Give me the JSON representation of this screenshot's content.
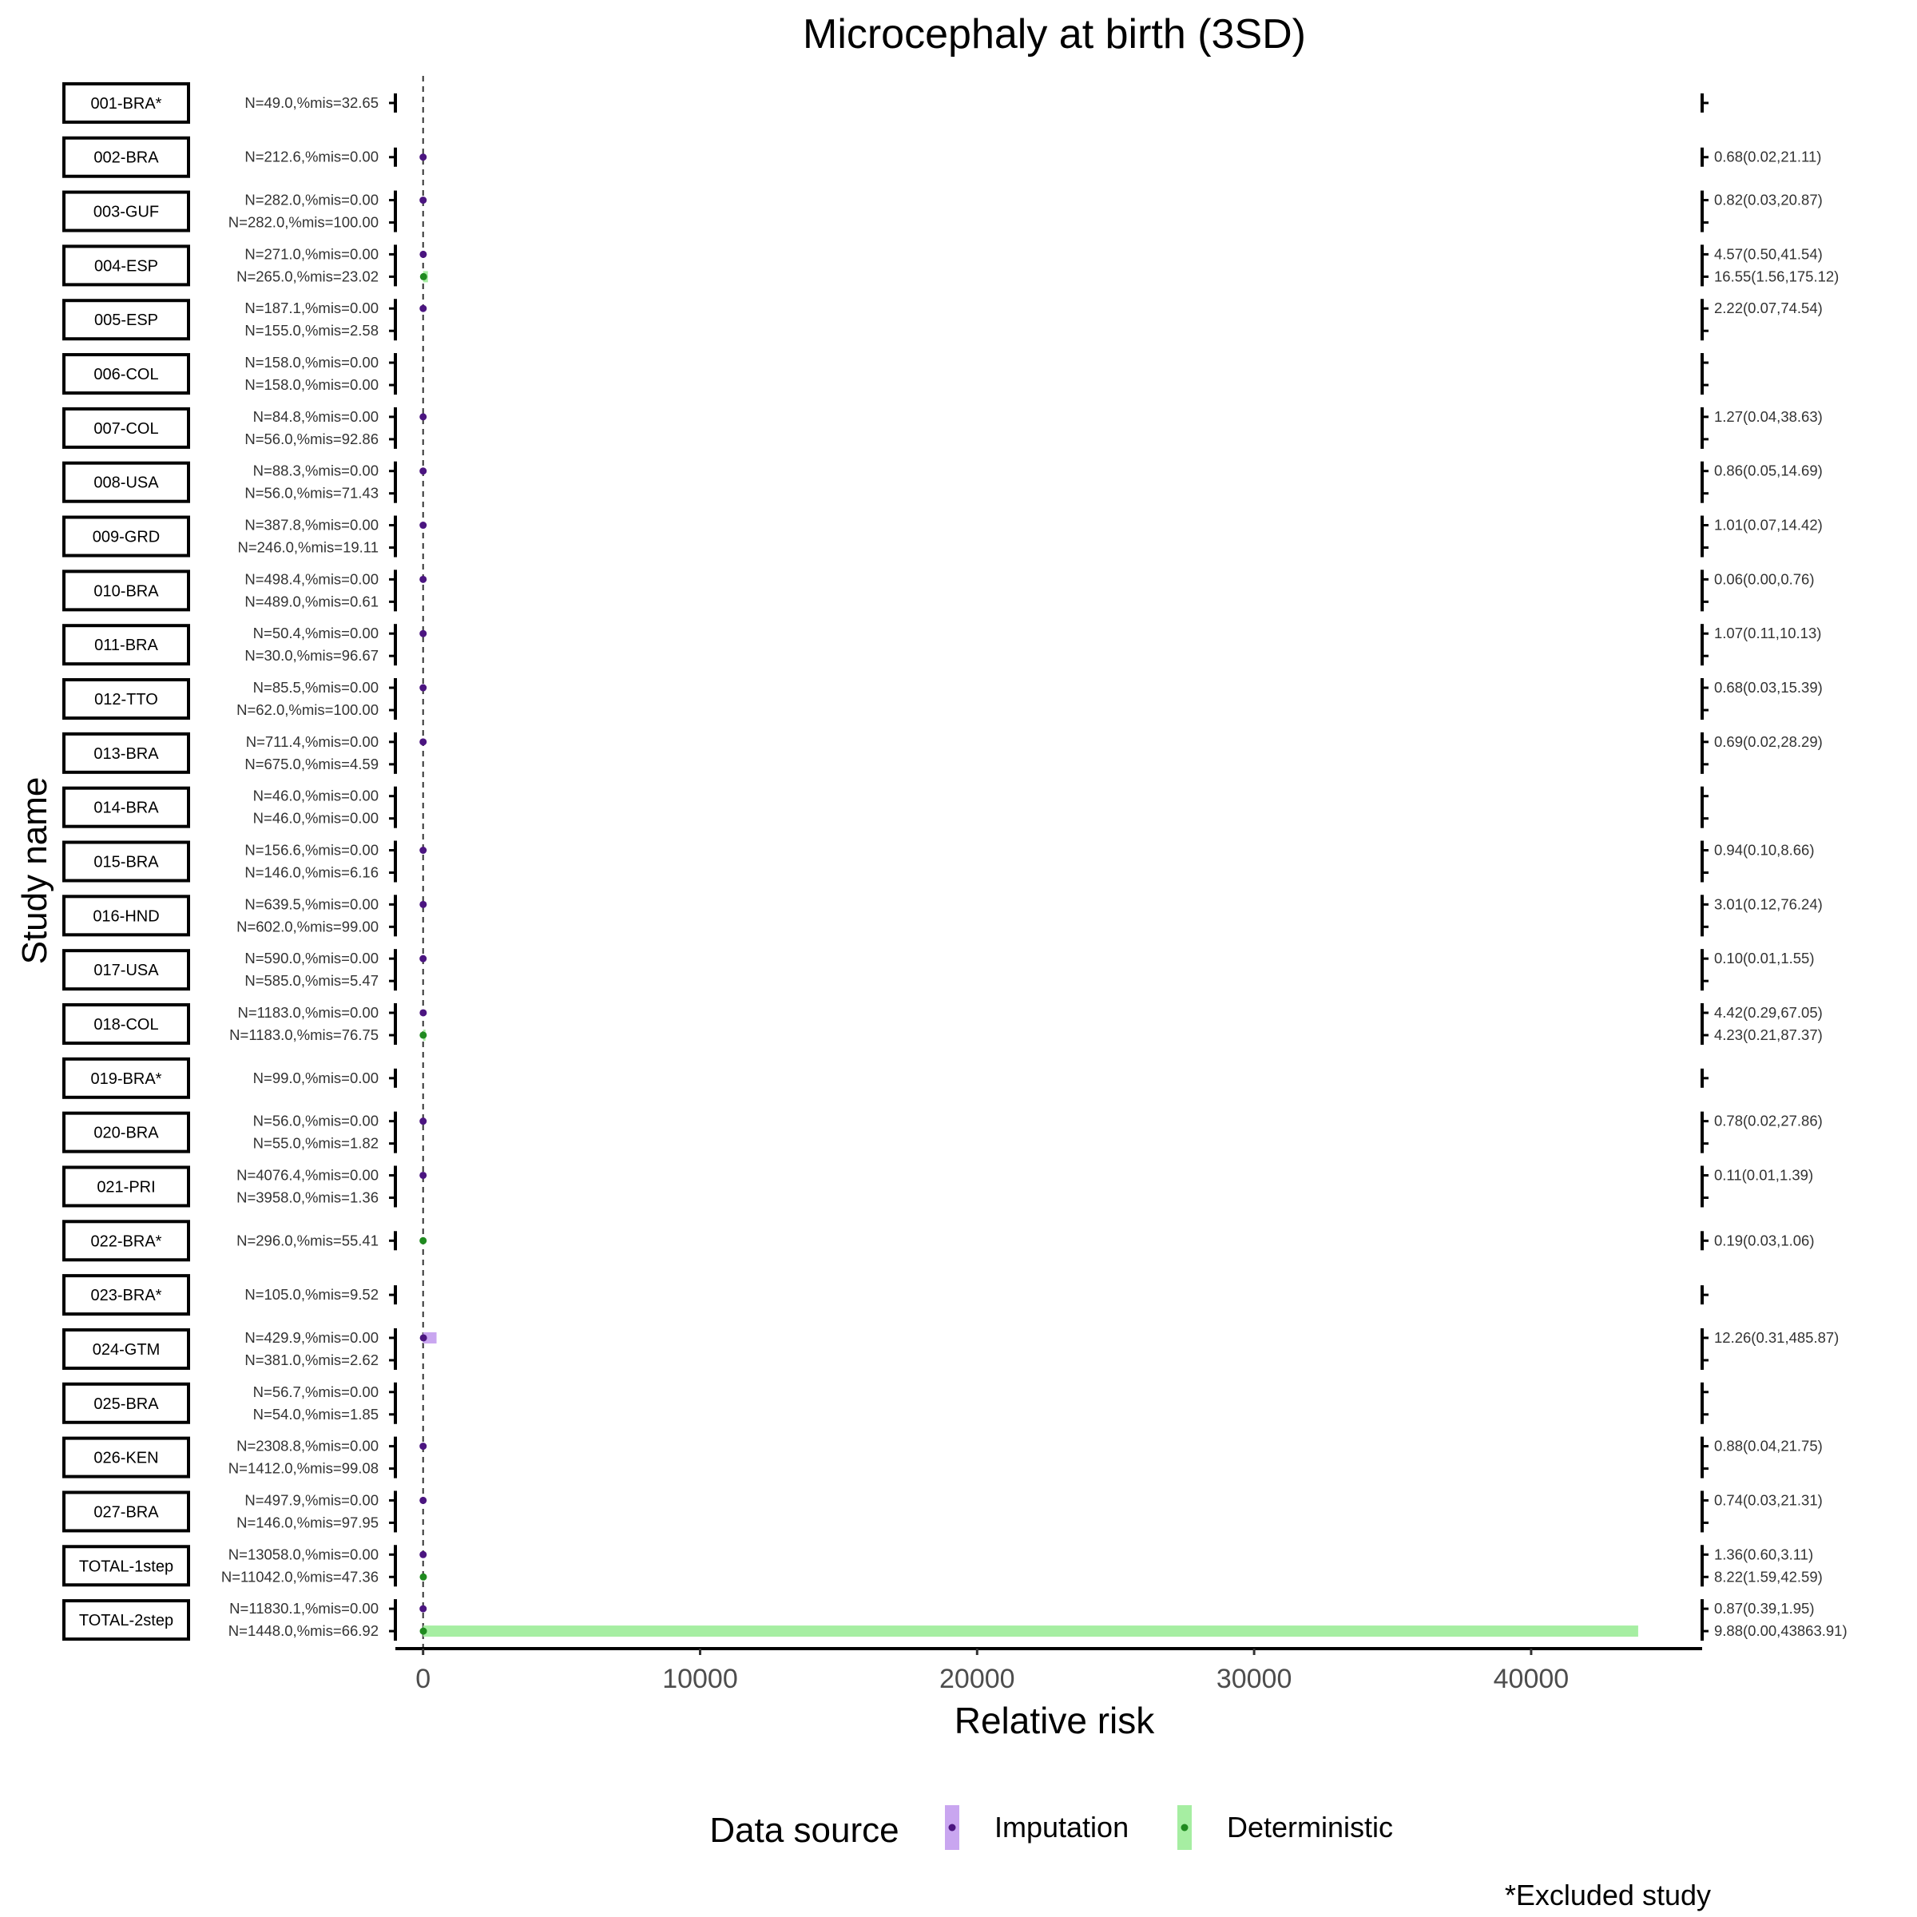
{
  "chart_data": {
    "type": "forest",
    "title": "Microcephaly at birth (3SD)",
    "xlabel": "Relative risk",
    "ylabel": "Study name",
    "xlim": [
      -1000,
      46000
    ],
    "x_ticks": [
      0,
      10000,
      20000,
      30000,
      40000
    ],
    "x_tick_labels": [
      "0",
      "10000",
      "20000",
      "30000",
      "40000"
    ],
    "reference_line": 1,
    "legend": {
      "title": "Data source",
      "entries": [
        {
          "name": "Imputation",
          "fill": "#c9a6f0",
          "point": "#4b1580"
        },
        {
          "name": "Deterministic",
          "fill": "#a6eea2",
          "point": "#1f8a1f"
        }
      ],
      "position": "bottom"
    },
    "footnote": "*Excluded study",
    "studies": [
      {
        "name": "001-BRA*",
        "rows": [
          {
            "label": "N=49.0,%mis=32.65",
            "source": null,
            "rr": null,
            "lo": null,
            "hi": null,
            "ci": ""
          }
        ]
      },
      {
        "name": "002-BRA",
        "rows": [
          {
            "label": "N=212.6,%mis=0.00",
            "source": "Imputation",
            "rr": 0.68,
            "lo": 0.02,
            "hi": 21.11,
            "ci": "0.68(0.02,21.11)"
          }
        ]
      },
      {
        "name": "003-GUF",
        "rows": [
          {
            "label": "N=282.0,%mis=0.00",
            "source": "Imputation",
            "rr": 0.82,
            "lo": 0.03,
            "hi": 20.87,
            "ci": "0.82(0.03,20.87)"
          },
          {
            "label": "N=282.0,%mis=100.00",
            "source": null,
            "rr": null,
            "lo": null,
            "hi": null,
            "ci": ""
          }
        ]
      },
      {
        "name": "004-ESP",
        "rows": [
          {
            "label": "N=271.0,%mis=0.00",
            "source": "Imputation",
            "rr": 4.57,
            "lo": 0.5,
            "hi": 41.54,
            "ci": "4.57(0.50,41.54)"
          },
          {
            "label": "N=265.0,%mis=23.02",
            "source": "Deterministic",
            "rr": 16.55,
            "lo": 1.56,
            "hi": 175.12,
            "ci": "16.55(1.56,175.12)"
          }
        ]
      },
      {
        "name": "005-ESP",
        "rows": [
          {
            "label": "N=187.1,%mis=0.00",
            "source": "Imputation",
            "rr": 2.22,
            "lo": 0.07,
            "hi": 74.54,
            "ci": "2.22(0.07,74.54)"
          },
          {
            "label": "N=155.0,%mis=2.58",
            "source": null,
            "rr": null,
            "lo": null,
            "hi": null,
            "ci": ""
          }
        ]
      },
      {
        "name": "006-COL",
        "rows": [
          {
            "label": "N=158.0,%mis=0.00",
            "source": null,
            "rr": null,
            "lo": null,
            "hi": null,
            "ci": ""
          },
          {
            "label": "N=158.0,%mis=0.00",
            "source": null,
            "rr": null,
            "lo": null,
            "hi": null,
            "ci": ""
          }
        ]
      },
      {
        "name": "007-COL",
        "rows": [
          {
            "label": "N=84.8,%mis=0.00",
            "source": "Imputation",
            "rr": 1.27,
            "lo": 0.04,
            "hi": 38.63,
            "ci": "1.27(0.04,38.63)"
          },
          {
            "label": "N=56.0,%mis=92.86",
            "source": null,
            "rr": null,
            "lo": null,
            "hi": null,
            "ci": ""
          }
        ]
      },
      {
        "name": "008-USA",
        "rows": [
          {
            "label": "N=88.3,%mis=0.00",
            "source": "Imputation",
            "rr": 0.86,
            "lo": 0.05,
            "hi": 14.69,
            "ci": "0.86(0.05,14.69)"
          },
          {
            "label": "N=56.0,%mis=71.43",
            "source": null,
            "rr": null,
            "lo": null,
            "hi": null,
            "ci": ""
          }
        ]
      },
      {
        "name": "009-GRD",
        "rows": [
          {
            "label": "N=387.8,%mis=0.00",
            "source": "Imputation",
            "rr": 1.01,
            "lo": 0.07,
            "hi": 14.42,
            "ci": "1.01(0.07,14.42)"
          },
          {
            "label": "N=246.0,%mis=19.11",
            "source": null,
            "rr": null,
            "lo": null,
            "hi": null,
            "ci": ""
          }
        ]
      },
      {
        "name": "010-BRA",
        "rows": [
          {
            "label": "N=498.4,%mis=0.00",
            "source": "Imputation",
            "rr": 0.06,
            "lo": 0.0,
            "hi": 0.76,
            "ci": "0.06(0.00,0.76)"
          },
          {
            "label": "N=489.0,%mis=0.61",
            "source": null,
            "rr": null,
            "lo": null,
            "hi": null,
            "ci": ""
          }
        ]
      },
      {
        "name": "011-BRA",
        "rows": [
          {
            "label": "N=50.4,%mis=0.00",
            "source": "Imputation",
            "rr": 1.07,
            "lo": 0.11,
            "hi": 10.13,
            "ci": "1.07(0.11,10.13)"
          },
          {
            "label": "N=30.0,%mis=96.67",
            "source": null,
            "rr": null,
            "lo": null,
            "hi": null,
            "ci": ""
          }
        ]
      },
      {
        "name": "012-TTO",
        "rows": [
          {
            "label": "N=85.5,%mis=0.00",
            "source": "Imputation",
            "rr": 0.68,
            "lo": 0.03,
            "hi": 15.39,
            "ci": "0.68(0.03,15.39)"
          },
          {
            "label": "N=62.0,%mis=100.00",
            "source": null,
            "rr": null,
            "lo": null,
            "hi": null,
            "ci": ""
          }
        ]
      },
      {
        "name": "013-BRA",
        "rows": [
          {
            "label": "N=711.4,%mis=0.00",
            "source": "Imputation",
            "rr": 0.69,
            "lo": 0.02,
            "hi": 28.29,
            "ci": "0.69(0.02,28.29)"
          },
          {
            "label": "N=675.0,%mis=4.59",
            "source": null,
            "rr": null,
            "lo": null,
            "hi": null,
            "ci": ""
          }
        ]
      },
      {
        "name": "014-BRA",
        "rows": [
          {
            "label": "N=46.0,%mis=0.00",
            "source": null,
            "rr": null,
            "lo": null,
            "hi": null,
            "ci": ""
          },
          {
            "label": "N=46.0,%mis=0.00",
            "source": null,
            "rr": null,
            "lo": null,
            "hi": null,
            "ci": ""
          }
        ]
      },
      {
        "name": "015-BRA",
        "rows": [
          {
            "label": "N=156.6,%mis=0.00",
            "source": "Imputation",
            "rr": 0.94,
            "lo": 0.1,
            "hi": 8.66,
            "ci": "0.94(0.10,8.66)"
          },
          {
            "label": "N=146.0,%mis=6.16",
            "source": null,
            "rr": null,
            "lo": null,
            "hi": null,
            "ci": ""
          }
        ]
      },
      {
        "name": "016-HND",
        "rows": [
          {
            "label": "N=639.5,%mis=0.00",
            "source": "Imputation",
            "rr": 3.01,
            "lo": 0.12,
            "hi": 76.24,
            "ci": "3.01(0.12,76.24)"
          },
          {
            "label": "N=602.0,%mis=99.00",
            "source": null,
            "rr": null,
            "lo": null,
            "hi": null,
            "ci": ""
          }
        ]
      },
      {
        "name": "017-USA",
        "rows": [
          {
            "label": "N=590.0,%mis=0.00",
            "source": "Imputation",
            "rr": 0.1,
            "lo": 0.01,
            "hi": 1.55,
            "ci": "0.10(0.01,1.55)"
          },
          {
            "label": "N=585.0,%mis=5.47",
            "source": null,
            "rr": null,
            "lo": null,
            "hi": null,
            "ci": ""
          }
        ]
      },
      {
        "name": "018-COL",
        "rows": [
          {
            "label": "N=1183.0,%mis=0.00",
            "source": "Imputation",
            "rr": 4.42,
            "lo": 0.29,
            "hi": 67.05,
            "ci": "4.42(0.29,67.05)"
          },
          {
            "label": "N=1183.0,%mis=76.75",
            "source": "Deterministic",
            "rr": 4.23,
            "lo": 0.21,
            "hi": 87.37,
            "ci": "4.23(0.21,87.37)"
          }
        ]
      },
      {
        "name": "019-BRA*",
        "rows": [
          {
            "label": "N=99.0,%mis=0.00",
            "source": null,
            "rr": null,
            "lo": null,
            "hi": null,
            "ci": ""
          }
        ]
      },
      {
        "name": "020-BRA",
        "rows": [
          {
            "label": "N=56.0,%mis=0.00",
            "source": "Imputation",
            "rr": 0.78,
            "lo": 0.02,
            "hi": 27.86,
            "ci": "0.78(0.02,27.86)"
          },
          {
            "label": "N=55.0,%mis=1.82",
            "source": null,
            "rr": null,
            "lo": null,
            "hi": null,
            "ci": ""
          }
        ]
      },
      {
        "name": "021-PRI",
        "rows": [
          {
            "label": "N=4076.4,%mis=0.00",
            "source": "Imputation",
            "rr": 0.11,
            "lo": 0.01,
            "hi": 1.39,
            "ci": "0.11(0.01,1.39)"
          },
          {
            "label": "N=3958.0,%mis=1.36",
            "source": null,
            "rr": null,
            "lo": null,
            "hi": null,
            "ci": ""
          }
        ]
      },
      {
        "name": "022-BRA*",
        "rows": [
          {
            "label": "N=296.0,%mis=55.41",
            "source": "Deterministic",
            "rr": 0.19,
            "lo": 0.03,
            "hi": 1.06,
            "ci": "0.19(0.03,1.06)"
          }
        ]
      },
      {
        "name": "023-BRA*",
        "rows": [
          {
            "label": "N=105.0,%mis=9.52",
            "source": null,
            "rr": null,
            "lo": null,
            "hi": null,
            "ci": ""
          }
        ]
      },
      {
        "name": "024-GTM",
        "rows": [
          {
            "label": "N=429.9,%mis=0.00",
            "source": "Imputation",
            "rr": 12.26,
            "lo": 0.31,
            "hi": 485.87,
            "ci": "12.26(0.31,485.87)"
          },
          {
            "label": "N=381.0,%mis=2.62",
            "source": null,
            "rr": null,
            "lo": null,
            "hi": null,
            "ci": ""
          }
        ]
      },
      {
        "name": "025-BRA",
        "rows": [
          {
            "label": "N=56.7,%mis=0.00",
            "source": null,
            "rr": null,
            "lo": null,
            "hi": null,
            "ci": ""
          },
          {
            "label": "N=54.0,%mis=1.85",
            "source": null,
            "rr": null,
            "lo": null,
            "hi": null,
            "ci": ""
          }
        ]
      },
      {
        "name": "026-KEN",
        "rows": [
          {
            "label": "N=2308.8,%mis=0.00",
            "source": "Imputation",
            "rr": 0.88,
            "lo": 0.04,
            "hi": 21.75,
            "ci": "0.88(0.04,21.75)"
          },
          {
            "label": "N=1412.0,%mis=99.08",
            "source": null,
            "rr": null,
            "lo": null,
            "hi": null,
            "ci": ""
          }
        ]
      },
      {
        "name": "027-BRA",
        "rows": [
          {
            "label": "N=497.9,%mis=0.00",
            "source": "Imputation",
            "rr": 0.74,
            "lo": 0.03,
            "hi": 21.31,
            "ci": "0.74(0.03,21.31)"
          },
          {
            "label": "N=146.0,%mis=97.95",
            "source": null,
            "rr": null,
            "lo": null,
            "hi": null,
            "ci": ""
          }
        ]
      },
      {
        "name": "TOTAL-1step",
        "rows": [
          {
            "label": "N=13058.0,%mis=0.00",
            "source": "Imputation",
            "rr": 1.36,
            "lo": 0.6,
            "hi": 3.11,
            "ci": "1.36(0.60,3.11)"
          },
          {
            "label": "N=11042.0,%mis=47.36",
            "source": "Deterministic",
            "rr": 8.22,
            "lo": 1.59,
            "hi": 42.59,
            "ci": "8.22(1.59,42.59)"
          }
        ]
      },
      {
        "name": "TOTAL-2step",
        "rows": [
          {
            "label": "N=11830.1,%mis=0.00",
            "source": "Imputation",
            "rr": 0.87,
            "lo": 0.39,
            "hi": 1.95,
            "ci": "0.87(0.39,1.95)"
          },
          {
            "label": "N=1448.0,%mis=66.92",
            "source": "Deterministic",
            "rr": 9.88,
            "lo": 0.0,
            "hi": 43863.91,
            "ci": "9.88(0.00,43863.91)"
          }
        ]
      }
    ]
  }
}
